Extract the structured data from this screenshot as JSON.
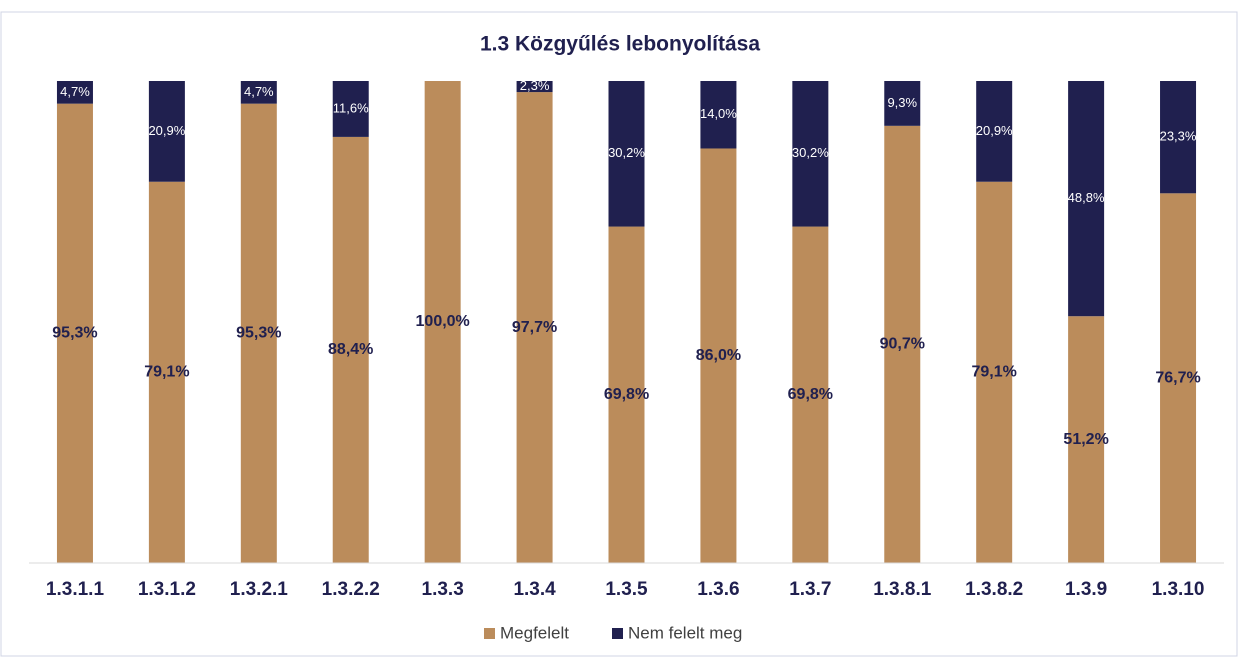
{
  "chart_data": {
    "type": "stacked_bar",
    "title": "1.3 Közgyűlés lebonyolítása",
    "categories": [
      "1.3.1.1",
      "1.3.1.2",
      "1.3.2.1",
      "1.3.2.2",
      "1.3.3",
      "1.3.4",
      "1.3.5",
      "1.3.6",
      "1.3.7",
      "1.3.8.1",
      "1.3.8.2",
      "1.3.9",
      "1.3.10"
    ],
    "series": [
      {
        "name": "Megfelelt",
        "color": "#bb8c5b",
        "values": [
          95.3,
          79.1,
          95.3,
          88.4,
          100,
          97.7,
          69.8,
          86.0,
          69.8,
          90.7,
          79.1,
          51.2,
          76.7
        ],
        "value_labels": [
          "95,3%",
          "79,1%",
          "95,3%",
          "88,4%",
          "100,0%",
          "97,7%",
          "69,8%",
          "86,0%",
          "69,8%",
          "90,7%",
          "79,1%",
          "51,2%",
          "76,7%"
        ]
      },
      {
        "name": "Nem felelt meg",
        "color": "#20204f",
        "values": [
          4.7,
          20.9,
          4.7,
          11.6,
          0,
          2.3,
          30.2,
          14.0,
          30.2,
          9.3,
          20.9,
          48.8,
          23.3
        ],
        "value_labels": [
          "4,7%",
          "20,9%",
          "4,7%",
          "11,6%",
          null,
          "2,3%",
          "30,2%",
          "14,0%",
          "30,2%",
          "9,3%",
          "20,9%",
          "48,8%",
          "23,3%"
        ]
      }
    ],
    "ylim": [
      0,
      100
    ],
    "legend": "bottom"
  }
}
